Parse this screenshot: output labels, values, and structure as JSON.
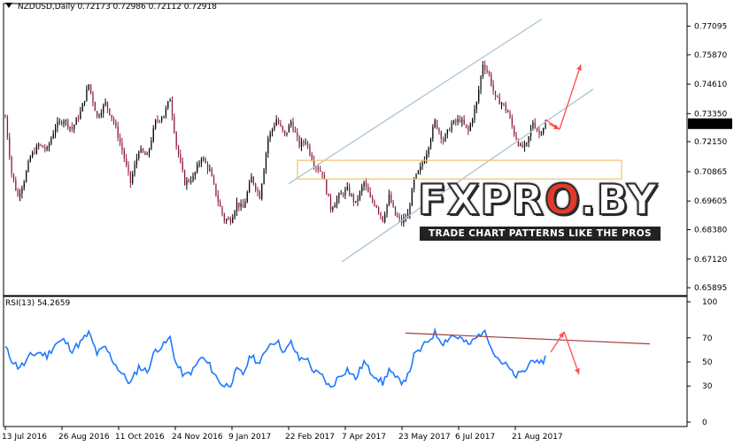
{
  "header": {
    "symbol": "NZDUSD,Daily",
    "ohlc": "0.72173 0.72986 0.72112 0.72918"
  },
  "rsi_panel": {
    "label": "RSI(13) 54.2659"
  },
  "watermark": {
    "logo_pre": "FXPR",
    "logo_o": "O",
    "logo_post": ".BY",
    "tagline": "TRADE CHART PATTERNS LIKE THE PROS"
  },
  "colors": {
    "bull_candle": "#000000",
    "bear_candle": "#8b1a3a",
    "rsi_line": "#1e78ff",
    "channel_line": "#a9c3d6",
    "arrow": "#ff4d4d",
    "rsi_trendline": "#a04040",
    "zone_border": "#f5c070",
    "price_tag": "#000000"
  },
  "chart_data": [
    {
      "type": "candlestick",
      "symbol": "NZDUSD",
      "timeframe": "Daily",
      "current_price": "0.72918",
      "y_ticks": [
        "0.77095",
        "0.75870",
        "0.74610",
        "0.73350",
        "0.72150",
        "0.70865",
        "0.69605",
        "0.68380",
        "0.67120",
        "0.65895"
      ],
      "x_ticks": [
        "13 Jul 2016",
        "26 Aug 2016",
        "11 Oct 2016",
        "24 Nov 2016",
        "9 Jan 2017",
        "22 Feb 2017",
        "7 Apr 2017",
        "23 May 2017",
        "6 Jul 2017",
        "21 Aug 2017"
      ],
      "ylim": [
        0.6571,
        0.7776
      ],
      "close_path": [
        [
          0,
          0.732
        ],
        [
          3,
          0.708
        ],
        [
          6,
          0.698
        ],
        [
          9,
          0.705
        ],
        [
          12,
          0.715
        ],
        [
          16,
          0.72
        ],
        [
          20,
          0.718
        ],
        [
          24,
          0.728
        ],
        [
          28,
          0.731
        ],
        [
          32,
          0.727
        ],
        [
          36,
          0.734
        ],
        [
          40,
          0.746
        ],
        [
          44,
          0.732
        ],
        [
          48,
          0.738
        ],
        [
          52,
          0.73
        ],
        [
          56,
          0.718
        ],
        [
          60,
          0.704
        ],
        [
          64,
          0.718
        ],
        [
          68,
          0.715
        ],
        [
          72,
          0.73
        ],
        [
          76,
          0.733
        ],
        [
          79,
          0.74
        ],
        [
          82,
          0.72
        ],
        [
          86,
          0.704
        ],
        [
          90,
          0.706
        ],
        [
          94,
          0.715
        ],
        [
          98,
          0.709
        ],
        [
          102,
          0.696
        ],
        [
          105,
          0.688
        ],
        [
          108,
          0.688
        ],
        [
          111,
          0.695
        ],
        [
          114,
          0.693
        ],
        [
          118,
          0.706
        ],
        [
          122,
          0.698
        ],
        [
          126,
          0.723
        ],
        [
          130,
          0.731
        ],
        [
          134,
          0.724
        ],
        [
          137,
          0.73
        ],
        [
          141,
          0.72
        ],
        [
          144,
          0.722
        ],
        [
          148,
          0.712
        ],
        [
          152,
          0.708
        ],
        [
          156,
          0.693
        ],
        [
          160,
          0.698
        ],
        [
          164,
          0.701
        ],
        [
          168,
          0.695
        ],
        [
          172,
          0.704
        ],
        [
          175,
          0.697
        ],
        [
          178,
          0.694
        ],
        [
          181,
          0.688
        ],
        [
          184,
          0.698
        ],
        [
          187,
          0.69
        ],
        [
          190,
          0.687
        ],
        [
          193,
          0.69
        ],
        [
          196,
          0.705
        ],
        [
          199,
          0.71
        ],
        [
          202,
          0.717
        ],
        [
          206,
          0.73
        ],
        [
          210,
          0.722
        ],
        [
          214,
          0.729
        ],
        [
          218,
          0.731
        ],
        [
          222,
          0.726
        ],
        [
          226,
          0.738
        ],
        [
          229,
          0.755
        ],
        [
          232,
          0.75
        ],
        [
          235,
          0.74
        ],
        [
          238,
          0.738
        ],
        [
          241,
          0.734
        ],
        [
          244,
          0.725
        ],
        [
          247,
          0.719
        ],
        [
          250,
          0.72
        ],
        [
          253,
          0.73
        ],
        [
          256,
          0.725
        ],
        [
          259,
          0.7292
        ]
      ],
      "channel": {
        "upper": [
          [
            0.7036,
            0.7036
          ],
          [
            0.774,
            0.774
          ]
        ],
        "lower": [
          [
            0.675,
            0.67
          ],
          [
            0.745,
            0.744
          ]
        ],
        "note": "ascending channel"
      },
      "resistance_zone": [
        0.7055,
        0.7135
      ],
      "arrows": [
        "up from channel support toward 0.75"
      ]
    },
    {
      "type": "line",
      "name": "RSI(13)",
      "last_value": "54.2659",
      "y_ticks": [
        "100",
        "70",
        "50",
        "30",
        "0"
      ],
      "ylim": [
        0,
        100
      ],
      "values": [
        [
          0,
          62
        ],
        [
          3,
          52
        ],
        [
          6,
          46
        ],
        [
          9,
          48
        ],
        [
          12,
          55
        ],
        [
          16,
          58
        ],
        [
          20,
          55
        ],
        [
          24,
          65
        ],
        [
          28,
          68
        ],
        [
          32,
          60
        ],
        [
          36,
          66
        ],
        [
          40,
          74
        ],
        [
          44,
          57
        ],
        [
          48,
          62
        ],
        [
          52,
          50
        ],
        [
          56,
          40
        ],
        [
          60,
          32
        ],
        [
          64,
          46
        ],
        [
          68,
          42
        ],
        [
          72,
          60
        ],
        [
          76,
          64
        ],
        [
          79,
          70
        ],
        [
          82,
          48
        ],
        [
          86,
          38
        ],
        [
          90,
          43
        ],
        [
          94,
          54
        ],
        [
          98,
          47
        ],
        [
          102,
          35
        ],
        [
          105,
          30
        ],
        [
          108,
          32
        ],
        [
          111,
          43
        ],
        [
          114,
          40
        ],
        [
          118,
          56
        ],
        [
          122,
          48
        ],
        [
          126,
          64
        ],
        [
          130,
          68
        ],
        [
          134,
          58
        ],
        [
          137,
          66
        ],
        [
          141,
          52
        ],
        [
          144,
          54
        ],
        [
          148,
          42
        ],
        [
          152,
          38
        ],
        [
          156,
          28
        ],
        [
          160,
          38
        ],
        [
          164,
          44
        ],
        [
          168,
          36
        ],
        [
          172,
          50
        ],
        [
          175,
          42
        ],
        [
          178,
          38
        ],
        [
          181,
          32
        ],
        [
          184,
          44
        ],
        [
          187,
          36
        ],
        [
          190,
          34
        ],
        [
          193,
          38
        ],
        [
          196,
          55
        ],
        [
          199,
          60
        ],
        [
          202,
          66
        ],
        [
          206,
          74
        ],
        [
          210,
          66
        ],
        [
          214,
          72
        ],
        [
          218,
          70
        ],
        [
          222,
          64
        ],
        [
          226,
          70
        ],
        [
          229,
          76
        ],
        [
          232,
          68
        ],
        [
          235,
          56
        ],
        [
          238,
          50
        ],
        [
          241,
          46
        ],
        [
          244,
          38
        ],
        [
          247,
          40
        ],
        [
          250,
          44
        ],
        [
          253,
          54
        ],
        [
          256,
          46
        ],
        [
          259,
          54
        ]
      ]
    }
  ]
}
